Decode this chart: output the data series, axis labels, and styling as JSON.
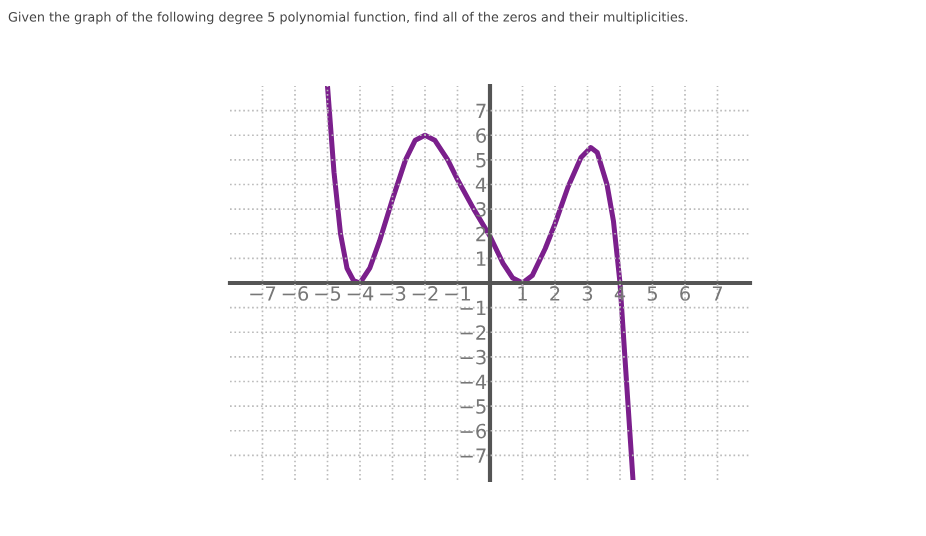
{
  "chart_data": {
    "type": "line",
    "title": "Given the graph of the following degree 5 polynomial function, find all of the zeros and their multiplicities.",
    "x": [
      -5,
      -4.8,
      -4.6,
      -4.4,
      -4.2,
      -4,
      -3.7,
      -3.4,
      -3,
      -2.6,
      -2.3,
      -2,
      -1.7,
      -1.3,
      -1,
      -0.5,
      0,
      0.4,
      0.7,
      1,
      1.3,
      1.7,
      2,
      2.4,
      2.8,
      3.1,
      3.3,
      3.6,
      3.8,
      4,
      4.1,
      4.2,
      4.3,
      4.4
    ],
    "series": [
      {
        "color": "#7b1f8c",
        "values": [
          8,
          4.5,
          2,
          0.6,
          0.1,
          0,
          0.6,
          1.7,
          3.4,
          5,
          5.8,
          6,
          5.8,
          5,
          4.2,
          3,
          1.9,
          0.8,
          0.2,
          0,
          0.3,
          1.4,
          2.4,
          3.9,
          5.1,
          5.5,
          5.3,
          4,
          2.5,
          0,
          -2,
          -4,
          -6,
          -8
        ]
      }
    ],
    "xlim": [
      -8,
      8
    ],
    "ylim": [
      -8,
      8
    ],
    "xticks": [
      -7,
      -6,
      -5,
      -4,
      -3,
      -2,
      -1,
      1,
      2,
      3,
      4,
      5,
      6,
      7
    ],
    "yticks": [
      -7,
      -6,
      -5,
      -4,
      -3,
      -2,
      -1,
      1,
      2,
      3,
      4,
      5,
      6,
      7
    ],
    "grid": true,
    "marker": "none",
    "line_style": "solid",
    "legend": false
  }
}
